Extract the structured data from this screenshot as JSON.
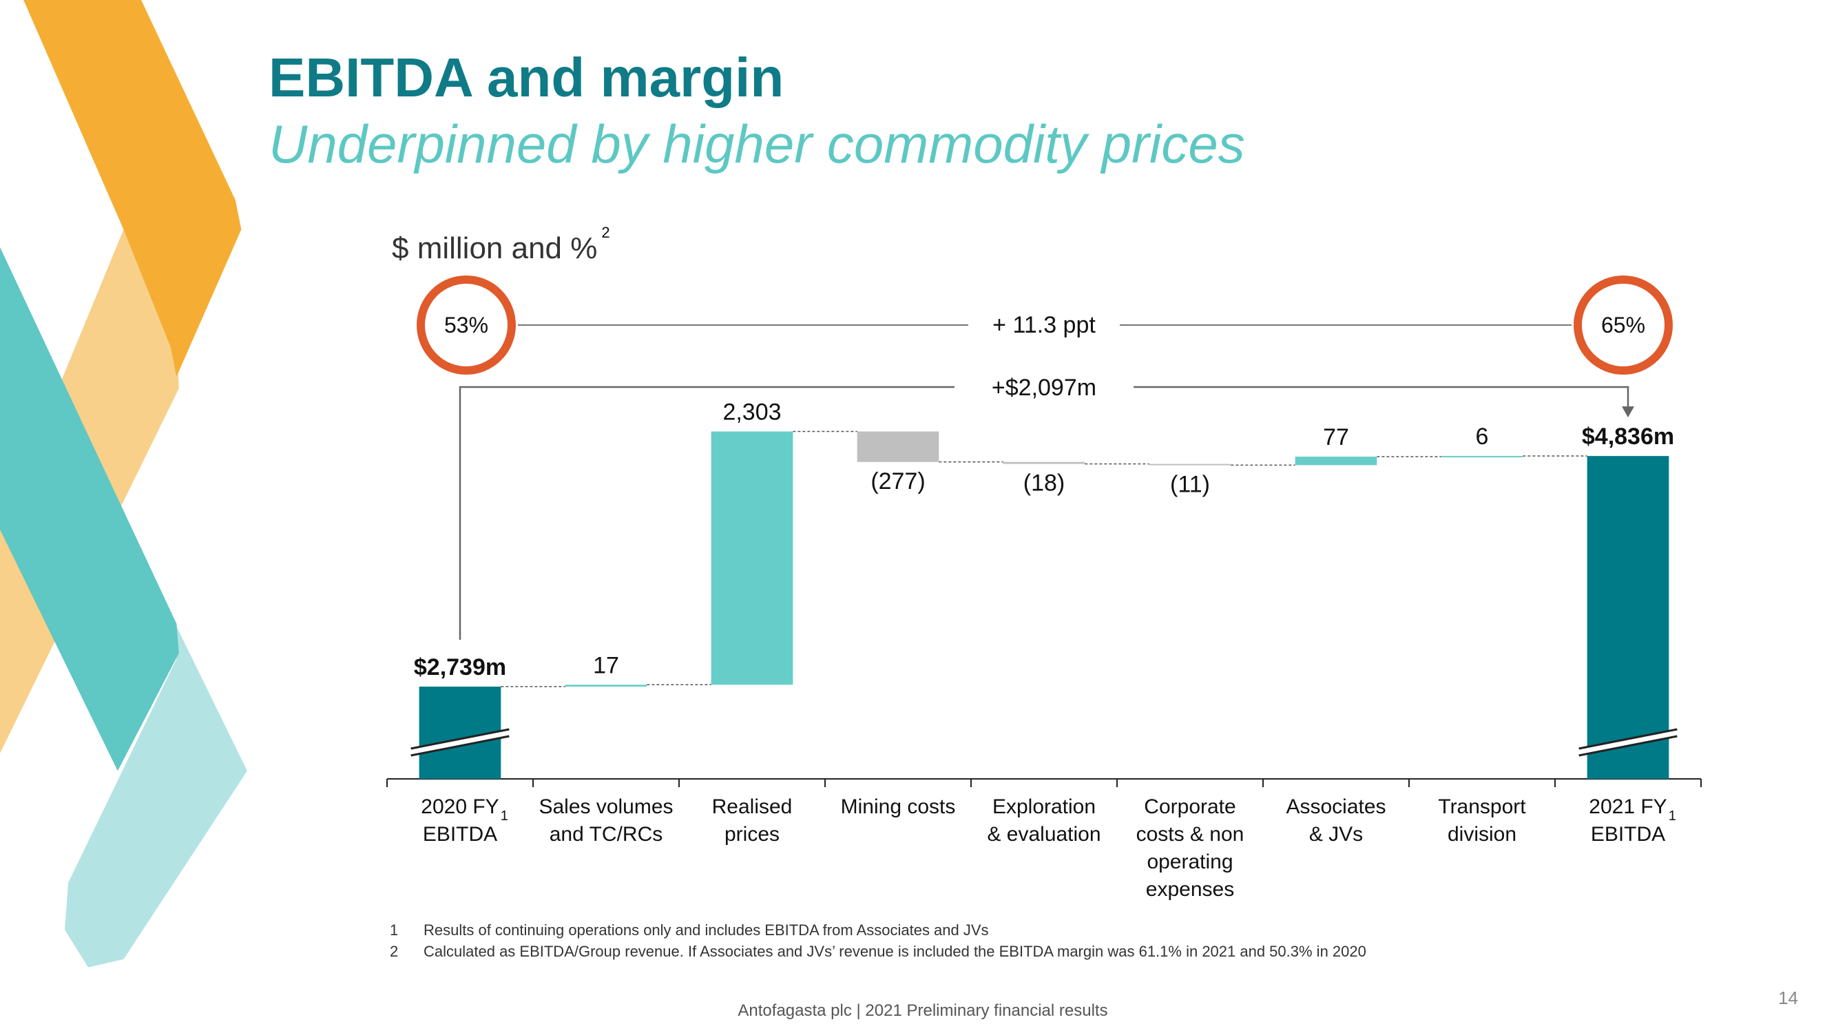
{
  "chart_data": {
    "type": "waterfall",
    "title": "EBITDA and margin",
    "subtitle": "Underpinned by higher commodity prices",
    "unit_label": "$ million and %",
    "unit_note": "2",
    "categories": [
      "2020 FY\nEBITDA",
      "Sales volumes\nand TC/RCs",
      "Realised\nprices",
      "Mining costs",
      "Exploration\n& evaluation",
      "Corporate\ncosts & non\noperating\nexpenses",
      "Associates\n& JVs",
      "Transport\ndivision",
      "2021 FY\nEBITDA"
    ],
    "start_note": "1",
    "end_note": "1",
    "values": [
      2739,
      17,
      2303,
      -277,
      -18,
      -11,
      77,
      6,
      4836
    ],
    "value_labels": [
      "$2,739m",
      "17",
      "2,303",
      "(277)",
      "(18)",
      "(11)",
      "77",
      "6",
      "$4,836m"
    ],
    "colors": {
      "total": "#007a87",
      "increase": "#66cdc8",
      "decrease": "#bfbfbf"
    },
    "ylim": [
      1900,
      5100
    ],
    "broken_axis": true,
    "margin_start": "53%",
    "margin_end": "65%",
    "margin_change": "+ 11.3 ppt",
    "total_change": "+$2,097m",
    "footnotes": [
      {
        "marker": "1",
        "text": "Results of continuing operations only and includes EBITDA from Associates and JVs"
      },
      {
        "marker": "2",
        "text": "Calculated as EBITDA/Group revenue. If Associates and JVs’ revenue is included the EBITDA margin was 61.1% in 2021 and 50.3% in 2020"
      }
    ]
  },
  "footer": "Antofagasta plc | 2021 Preliminary financial results",
  "page_number": "14"
}
